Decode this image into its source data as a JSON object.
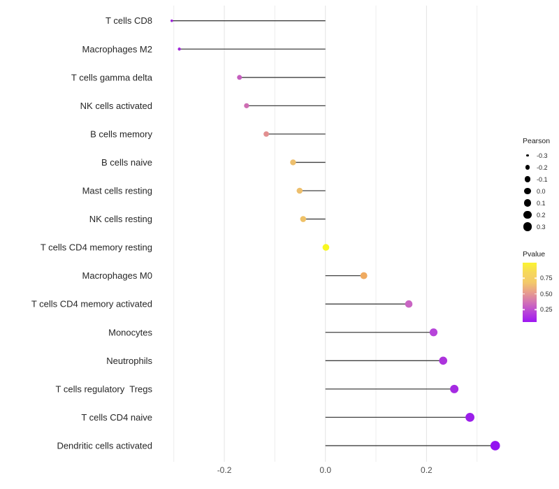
{
  "figure": {
    "background": "#FFFFFF",
    "text_color": "#262626",
    "axis_text_color": "#4D4D4D",
    "gridline_major_color": "#E3E3E3",
    "gridline_minor_color": "#EDEDED",
    "stem_color": "#404040"
  },
  "chart_data": {
    "type": "lollipop",
    "orientation": "horizontal",
    "title": "",
    "xlabel": "",
    "ylabel": "",
    "xlim": [
      -0.316,
      0.367
    ],
    "x_gridlines": [
      -0.3,
      -0.2,
      -0.1,
      0.0,
      0.1,
      0.2,
      0.3
    ],
    "x_ticks": [
      {
        "label": "-0.2",
        "value": -0.2
      },
      {
        "label": "0.0",
        "value": 0.0
      },
      {
        "label": "0.2",
        "value": 0.2
      }
    ],
    "size_encoding": "Pearson correlation",
    "color_encoding": "Pvalue",
    "points": [
      {
        "label": "T cells CD8",
        "pearson": -0.304,
        "pvalue_est": 0.18,
        "color": "#9E21DB",
        "r": 1.8
      },
      {
        "label": "Macrophages M2",
        "pearson": -0.289,
        "pvalue_est": 0.2,
        "color": "#A129D8",
        "r": 2.2
      },
      {
        "label": "T cells gamma delta",
        "pearson": -0.17,
        "pvalue_est": 0.38,
        "color": "#C55EBE",
        "r": 3.5
      },
      {
        "label": "NK cells activated",
        "pearson": -0.156,
        "pvalue_est": 0.42,
        "color": "#CE6DB3",
        "r": 3.6
      },
      {
        "label": "B cells memory",
        "pearson": -0.117,
        "pvalue_est": 0.55,
        "color": "#E28F90",
        "r": 3.9
      },
      {
        "label": "B cells naive",
        "pearson": -0.064,
        "pvalue_est": 0.72,
        "color": "#EDBF6D",
        "r": 4.2
      },
      {
        "label": "Mast cells resting",
        "pearson": -0.051,
        "pvalue_est": 0.72,
        "color": "#EDBF6D",
        "r": 4.3
      },
      {
        "label": "NK cells resting",
        "pearson": -0.044,
        "pvalue_est": 0.73,
        "color": "#EFC167",
        "r": 4.3
      },
      {
        "label": "T cells CD4 memory resting",
        "pearson": 0.001,
        "pvalue_est": 0.98,
        "color": "#F8F722",
        "r": 4.8
      },
      {
        "label": "Macrophages M0",
        "pearson": 0.076,
        "pvalue_est": 0.66,
        "color": "#EFAA60",
        "r": 5.0
      },
      {
        "label": "T cells CD4 memory activated",
        "pearson": 0.165,
        "pvalue_est": 0.4,
        "color": "#C965C3",
        "r": 5.3
      },
      {
        "label": "Monocytes",
        "pearson": 0.214,
        "pvalue_est": 0.28,
        "color": "#B644D9",
        "r": 5.6
      },
      {
        "label": "Neutrophils",
        "pearson": 0.233,
        "pvalue_est": 0.25,
        "color": "#AC33DC",
        "r": 5.8
      },
      {
        "label": "T cells regulatory  Tregs",
        "pearson": 0.255,
        "pvalue_est": 0.21,
        "color": "#A52BE2",
        "r": 6.0
      },
      {
        "label": "T cells CD4 naive",
        "pearson": 0.286,
        "pvalue_est": 0.16,
        "color": "#9B1EEA",
        "r": 6.4
      },
      {
        "label": "Dendritic cells activated",
        "pearson": 0.336,
        "pvalue_est": 0.12,
        "color": "#9313F0",
        "r": 6.8
      }
    ]
  },
  "legend_pearson": {
    "title": "Pearson",
    "items": [
      {
        "label": "-0.3",
        "r": 1.7
      },
      {
        "label": "-0.2",
        "r": 3.2
      },
      {
        "label": "-0.1",
        "r": 4.2
      },
      {
        "label": "0.0",
        "r": 4.8
      },
      {
        "label": "0.1",
        "r": 5.3
      },
      {
        "label": "0.2",
        "r": 5.8
      },
      {
        "label": "0.3",
        "r": 6.4
      }
    ]
  },
  "legend_pvalue": {
    "title": "Pvalue",
    "domain": [
      0.05,
      1.0
    ],
    "tick_labels": [
      "0.75",
      "0.50",
      "0.25"
    ],
    "tick_values": [
      0.75,
      0.5,
      0.25
    ],
    "gradient_top_to_bottom": [
      "#FBF430",
      "#F6D75B",
      "#F3C96A",
      "#E89E8C",
      "#D272B5",
      "#B844D8",
      "#9E17F2"
    ]
  }
}
